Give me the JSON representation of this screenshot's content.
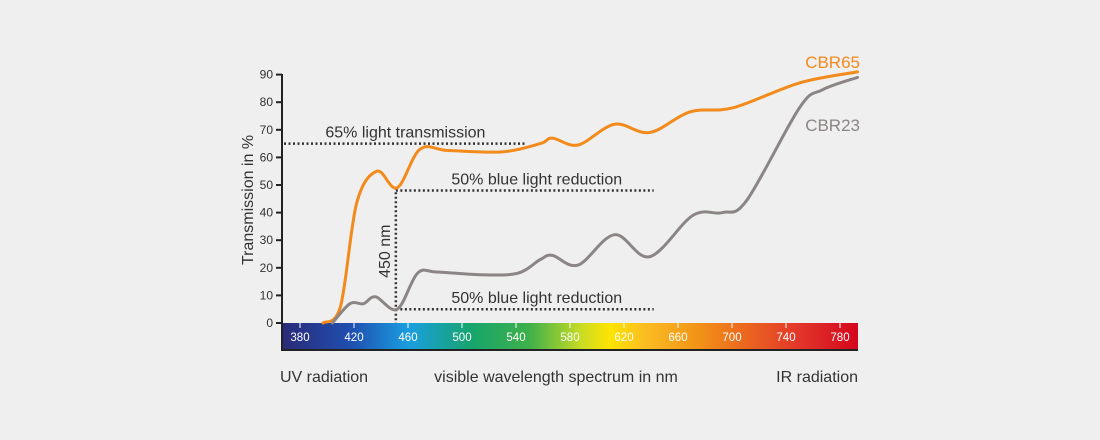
{
  "chart_data": {
    "type": "line",
    "xlabel": "visible wavelength spectrum in nm",
    "ylabel": "Transmission in %",
    "xlim": [
      367,
      808
    ],
    "ylim": [
      0,
      90
    ],
    "y_ticks": [
      "0",
      "10",
      "20",
      "30",
      "40",
      "50",
      "60",
      "70",
      "80",
      "90"
    ],
    "x_ticks": [
      "380",
      "420",
      "460",
      "500",
      "540",
      "580",
      "620",
      "660",
      "700",
      "740",
      "780"
    ],
    "grid": false,
    "series": [
      {
        "name": "CBR65",
        "color": "#f28a1c",
        "x": [
          397,
          410,
          422,
          437,
          452,
          469,
          490,
          530,
          558,
          567,
          586,
          613,
          639,
          669,
          701,
          750,
          793
        ],
        "y": [
          0,
          6,
          43.5,
          55,
          49,
          63,
          62.5,
          62,
          65,
          67,
          64.5,
          72,
          69,
          76.5,
          78,
          87,
          91
        ]
      },
      {
        "name": "CBR23",
        "color": "#8b8585",
        "x": [
          404,
          417,
          427,
          436,
          452,
          467,
          481,
          513,
          541,
          558,
          567,
          586,
          613,
          639,
          671,
          693,
          711,
          750,
          767,
          793
        ],
        "y": [
          0,
          7,
          7,
          9.5,
          5,
          18,
          18.5,
          17.5,
          18,
          23,
          24.5,
          21,
          32,
          24,
          39,
          40,
          44.5,
          78,
          84.5,
          89
        ]
      }
    ],
    "annotations": [
      {
        "text": "65% light transmission",
        "y": 65,
        "x_end": 548
      },
      {
        "text": "50% blue light reduction",
        "y": 48,
        "x_start": 451,
        "x_end": 642
      },
      {
        "text": "50% blue light reduction",
        "y": 5,
        "x_start": 451,
        "x_end": 642
      },
      {
        "text": "450 nm",
        "x": 451,
        "y_top": 49
      }
    ],
    "spectrum_band_labels": {
      "left": "UV radiation",
      "center": "visible wavelength spectrum in nm",
      "right": "IR radiation"
    },
    "colors": {
      "background": "#efefef",
      "axis": "#222222",
      "annotation": "#333333"
    }
  }
}
